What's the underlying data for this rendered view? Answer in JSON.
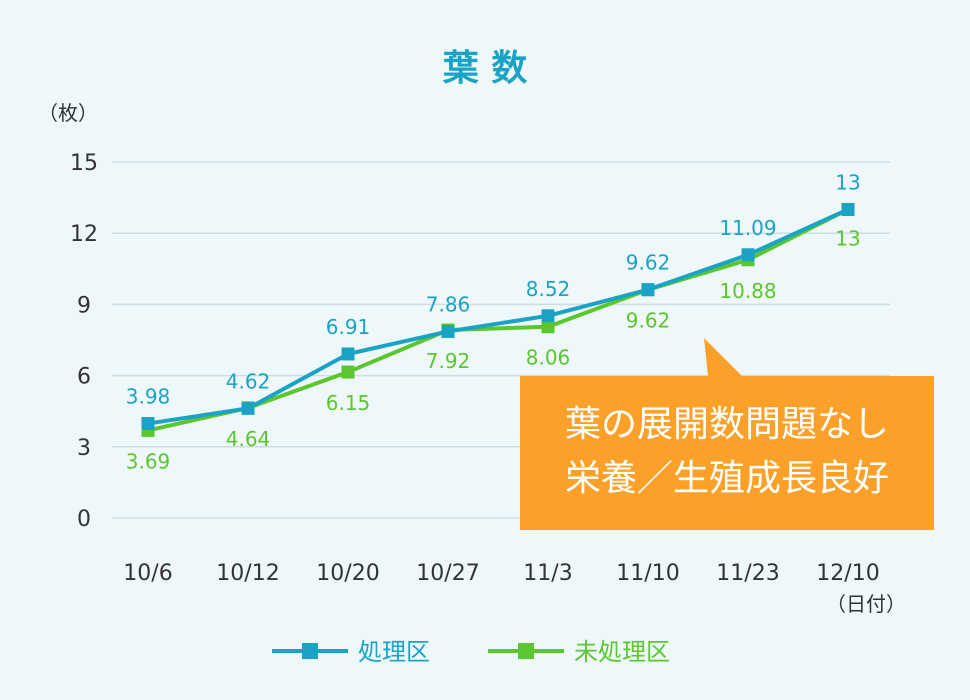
{
  "chart_data": {
    "type": "line",
    "title": "葉 数",
    "ylabel": "（枚）",
    "xlabel": "（日付）",
    "categories": [
      "10/6",
      "10/12",
      "10/20",
      "10/27",
      "11/3",
      "11/10",
      "11/23",
      "12/10"
    ],
    "ylim": [
      0,
      15
    ],
    "yticks": [
      0,
      3,
      6,
      9,
      12,
      15
    ],
    "grid": true,
    "legend_position": "bottom-center",
    "series": [
      {
        "name": "処理区",
        "color": "#1aa3c4",
        "values": [
          3.98,
          4.62,
          6.91,
          7.86,
          8.52,
          9.62,
          11.09,
          13
        ],
        "labels": [
          "3.98",
          "4.62",
          "6.91",
          "7.86",
          "8.52",
          "9.62",
          "11.09",
          "13"
        ]
      },
      {
        "name": "未処理区",
        "color": "#5cc62e",
        "values": [
          3.69,
          4.64,
          6.15,
          7.92,
          8.06,
          9.62,
          10.88,
          13
        ],
        "labels": [
          "3.69",
          "4.64",
          "6.15",
          "7.92",
          "8.06",
          "9.62",
          "10.88",
          "13"
        ]
      }
    ],
    "annotation": {
      "lines": [
        "葉の展開数問題なし",
        "栄養／生殖成長良好"
      ],
      "color": "#fba12a"
    }
  }
}
